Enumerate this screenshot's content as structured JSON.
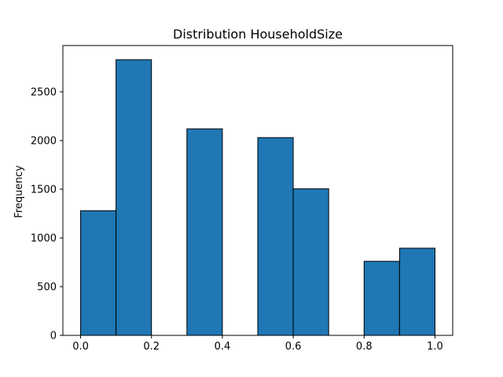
{
  "chart_data": {
    "type": "bar",
    "title": "Distribution HouseholdSize",
    "xlabel": "",
    "ylabel": "Frequency",
    "bins": [
      {
        "start": 0.0,
        "end": 0.1,
        "value": 1280
      },
      {
        "start": 0.1,
        "end": 0.2,
        "value": 2830
      },
      {
        "start": 0.2,
        "end": 0.3,
        "value": 0
      },
      {
        "start": 0.3,
        "end": 0.4,
        "value": 2120
      },
      {
        "start": 0.4,
        "end": 0.5,
        "value": 0
      },
      {
        "start": 0.5,
        "end": 0.6,
        "value": 2030
      },
      {
        "start": 0.6,
        "end": 0.7,
        "value": 1505
      },
      {
        "start": 0.7,
        "end": 0.8,
        "value": 0
      },
      {
        "start": 0.8,
        "end": 0.9,
        "value": 760
      },
      {
        "start": 0.9,
        "end": 1.0,
        "value": 895
      }
    ],
    "xlim": [
      -0.05,
      1.05
    ],
    "ylim": [
      0,
      2975
    ],
    "xticks": [
      "0.0",
      "0.2",
      "0.4",
      "0.6",
      "0.8",
      "1.0"
    ],
    "yticks": [
      "0",
      "500",
      "1000",
      "1500",
      "2000",
      "2500"
    ],
    "grid": false,
    "colors": {
      "bar_fill": "#1f77b4",
      "bar_edge": "#000000",
      "axes": "#000000"
    }
  }
}
